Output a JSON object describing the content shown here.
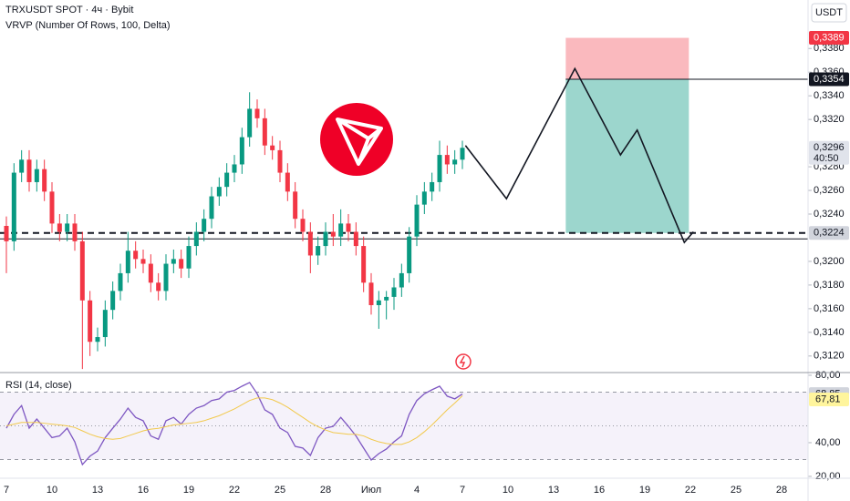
{
  "chart_data": [
    {
      "type": "candlestick",
      "title": "TRXUSDT SPOT · 4ч · Bybit",
      "subtitle": "VRVP (Number Of Rows, 100, Delta)",
      "currency": "USDT",
      "x": [
        0,
        0.5,
        1,
        1.5,
        2,
        2.5,
        3,
        3.5,
        4,
        4.5,
        5,
        5.5,
        6,
        6.5,
        7,
        7.5,
        8,
        8.5,
        9,
        9.5,
        10,
        10.5,
        11,
        11.5,
        12,
        12.5,
        13,
        13.5,
        14,
        14.5,
        15,
        15.5,
        16,
        16.5,
        17,
        17.5,
        18,
        18.5,
        19,
        19.5,
        20,
        20.5,
        21,
        21.5,
        22,
        22.5,
        23,
        23.5,
        24,
        24.5,
        25,
        25.5,
        26,
        26.5,
        27,
        27.5,
        28,
        28.5,
        29,
        29.5,
        30
      ],
      "open": [
        0.323,
        0.3217,
        0.3275,
        0.3286,
        0.3267,
        0.3278,
        0.3259,
        0.3232,
        0.3225,
        0.3232,
        0.3217,
        0.3167,
        0.3132,
        0.3136,
        0.3159,
        0.3175,
        0.319,
        0.3209,
        0.3202,
        0.3198,
        0.3182,
        0.3175,
        0.3198,
        0.3202,
        0.3194,
        0.3213,
        0.3225,
        0.3236,
        0.3255,
        0.3263,
        0.3275,
        0.3282,
        0.3305,
        0.3329,
        0.3321,
        0.3298,
        0.3294,
        0.3275,
        0.3259,
        0.3236,
        0.3225,
        0.3205,
        0.3213,
        0.3225,
        0.3221,
        0.3232,
        0.3225,
        0.3213,
        0.3182,
        0.3163,
        0.3167,
        0.317,
        0.3178,
        0.319,
        0.3221,
        0.3248,
        0.3259,
        0.3267,
        0.329,
        0.3282,
        0.3286
      ],
      "high": [
        0.3238,
        0.3283,
        0.3294,
        0.3294,
        0.3286,
        0.3286,
        0.3267,
        0.324,
        0.324,
        0.324,
        0.3225,
        0.3175,
        0.3144,
        0.3167,
        0.3183,
        0.3198,
        0.3225,
        0.3217,
        0.321,
        0.3206,
        0.319,
        0.3206,
        0.321,
        0.321,
        0.3221,
        0.3233,
        0.3244,
        0.3263,
        0.3271,
        0.3283,
        0.329,
        0.3313,
        0.3343,
        0.3337,
        0.3329,
        0.3306,
        0.3302,
        0.3283,
        0.3267,
        0.3244,
        0.3233,
        0.3221,
        0.3233,
        0.324,
        0.3244,
        0.324,
        0.3233,
        0.3221,
        0.319,
        0.3175,
        0.3175,
        0.3186,
        0.3198,
        0.3229,
        0.3256,
        0.3267,
        0.3275,
        0.3302,
        0.3298,
        0.3294,
        0.3302
      ],
      "low": [
        0.319,
        0.3209,
        0.3267,
        0.3259,
        0.3259,
        0.3251,
        0.3224,
        0.3217,
        0.3217,
        0.3209,
        0.3109,
        0.312,
        0.3124,
        0.3128,
        0.3151,
        0.3167,
        0.3182,
        0.3194,
        0.319,
        0.3174,
        0.3167,
        0.3167,
        0.319,
        0.3186,
        0.3186,
        0.3205,
        0.3217,
        0.3228,
        0.3247,
        0.3255,
        0.3267,
        0.3274,
        0.3297,
        0.3313,
        0.329,
        0.3286,
        0.3267,
        0.3251,
        0.3228,
        0.3217,
        0.319,
        0.3197,
        0.3205,
        0.3213,
        0.3213,
        0.3217,
        0.3205,
        0.3174,
        0.3155,
        0.3143,
        0.3151,
        0.3159,
        0.317,
        0.3182,
        0.3213,
        0.324,
        0.3251,
        0.3259,
        0.3274,
        0.3274,
        0.3278
      ],
      "close": [
        0.3217,
        0.3275,
        0.3286,
        0.3267,
        0.3278,
        0.3259,
        0.3232,
        0.3225,
        0.3232,
        0.3217,
        0.3167,
        0.3132,
        0.3136,
        0.3159,
        0.3175,
        0.319,
        0.3209,
        0.3202,
        0.3198,
        0.3182,
        0.3175,
        0.3198,
        0.3202,
        0.3194,
        0.3213,
        0.3225,
        0.3236,
        0.3255,
        0.3263,
        0.3275,
        0.3282,
        0.3305,
        0.3329,
        0.3321,
        0.3298,
        0.3294,
        0.3275,
        0.3259,
        0.3236,
        0.3225,
        0.3205,
        0.3213,
        0.3225,
        0.3221,
        0.3232,
        0.3225,
        0.3213,
        0.3182,
        0.3163,
        0.3167,
        0.317,
        0.3178,
        0.319,
        0.3221,
        0.3248,
        0.3259,
        0.3267,
        0.329,
        0.3282,
        0.3286,
        0.3296
      ],
      "up_color": "#089981",
      "down_color": "#f23645",
      "xlim": [
        -0.42,
        52.74
      ],
      "xticks": [
        {
          "value": 0,
          "label": "7"
        },
        {
          "value": 3,
          "label": "10"
        },
        {
          "value": 6,
          "label": "13"
        },
        {
          "value": 9,
          "label": "16"
        },
        {
          "value": 12,
          "label": "19"
        },
        {
          "value": 15,
          "label": "22"
        },
        {
          "value": 18,
          "label": "25"
        },
        {
          "value": 21,
          "label": "28"
        },
        {
          "value": 24,
          "label": "Июл"
        },
        {
          "value": 27,
          "label": "4"
        },
        {
          "value": 30,
          "label": "7"
        },
        {
          "value": 33,
          "label": "10"
        },
        {
          "value": 36,
          "label": "13"
        },
        {
          "value": 39,
          "label": "16"
        },
        {
          "value": 42,
          "label": "19"
        },
        {
          "value": 45,
          "label": "22"
        },
        {
          "value": 48,
          "label": "25"
        },
        {
          "value": 51,
          "label": "28"
        }
      ],
      "ylim": [
        0.3106,
        0.3421
      ],
      "yticks": [
        {
          "value": 0.312,
          "label": "0,3120"
        },
        {
          "value": 0.314,
          "label": "0,3140"
        },
        {
          "value": 0.316,
          "label": "0,3160"
        },
        {
          "value": 0.318,
          "label": "0,3180"
        },
        {
          "value": 0.32,
          "label": "0,3200"
        },
        {
          "value": 0.324,
          "label": "0,3240"
        },
        {
          "value": 0.326,
          "label": "0,3260"
        },
        {
          "value": 0.328,
          "label": "0,3280"
        },
        {
          "value": 0.332,
          "label": "0,3320"
        },
        {
          "value": 0.334,
          "label": "0,3340"
        },
        {
          "value": 0.336,
          "label": "0,3360"
        },
        {
          "value": 0.338,
          "label": "0,3380"
        }
      ],
      "hlines": [
        {
          "value": 0.3219,
          "style": "solid"
        },
        {
          "value": 0.3224,
          "style": "dashed"
        }
      ],
      "position": {
        "x": [
          36.8,
          44.9
        ],
        "stop": {
          "value": 0.3389,
          "label": "0,3389"
        },
        "entry": {
          "value": 0.3354,
          "label": "0,3354"
        },
        "target": {
          "value": 0.3224,
          "label": "0,3224"
        }
      },
      "last_price": {
        "value": 0.3296,
        "label": "0,3296"
      },
      "countdown": "40:50",
      "forecast": {
        "x": [
          30.2,
          32.9,
          37.4,
          40.4,
          41.5,
          44.6,
          45.2
        ],
        "values": [
          0.3298,
          0.3253,
          0.3363,
          0.329,
          0.3311,
          0.3216,
          0.3225
        ],
        "color": "#131722"
      }
    },
    {
      "type": "line",
      "title": "RSI (14, close)",
      "ylim": [
        18.9,
        81.6
      ],
      "yticks": [
        {
          "value": 80,
          "label": "80,00"
        },
        {
          "value": 40,
          "label": "40,00"
        },
        {
          "value": 20,
          "label": "20,00"
        }
      ],
      "levels": [
        70,
        50,
        30
      ],
      "series": [
        {
          "color": "#7e57c2",
          "last_label": "68,85",
          "label_color": "#d1d4dc",
          "values": [
            48.6,
            56.8,
            62,
            48.6,
            54,
            48.6,
            43,
            44,
            48.6,
            40.5,
            27,
            32,
            35,
            43,
            48.6,
            54,
            60.5,
            55,
            53,
            44,
            42,
            53,
            55,
            51,
            56.8,
            60.5,
            62,
            65,
            66,
            70,
            71,
            73.5,
            75.7,
            69,
            59.5,
            56.8,
            48.6,
            46,
            37.8,
            36.8,
            32.4,
            43,
            48.6,
            49.7,
            55,
            49.7,
            44,
            36.8,
            29.7,
            33.5,
            36.2,
            40.5,
            44,
            56.8,
            65,
            69,
            71.4,
            73.5,
            67.6,
            66,
            68.85
          ]
        },
        {
          "color": "#f2c94c",
          "last_label": "67,81",
          "label_color": "#fff59d",
          "values": [
            50,
            51,
            52,
            52,
            52,
            51.5,
            51,
            50.5,
            50,
            49,
            47,
            45,
            43.5,
            42.5,
            42,
            42.5,
            44,
            45.5,
            47,
            48,
            48.5,
            49.5,
            50.5,
            51,
            51.5,
            52,
            53,
            54.5,
            56,
            58,
            60,
            62.5,
            65,
            66.5,
            66.5,
            65.5,
            63.5,
            61,
            58,
            55,
            52,
            49.5,
            47.5,
            46,
            45.5,
            45,
            45,
            44,
            42,
            40.5,
            39.5,
            39,
            39,
            40.5,
            43,
            46.5,
            50.5,
            55,
            59.5,
            63.5,
            67.81
          ]
        }
      ]
    }
  ]
}
